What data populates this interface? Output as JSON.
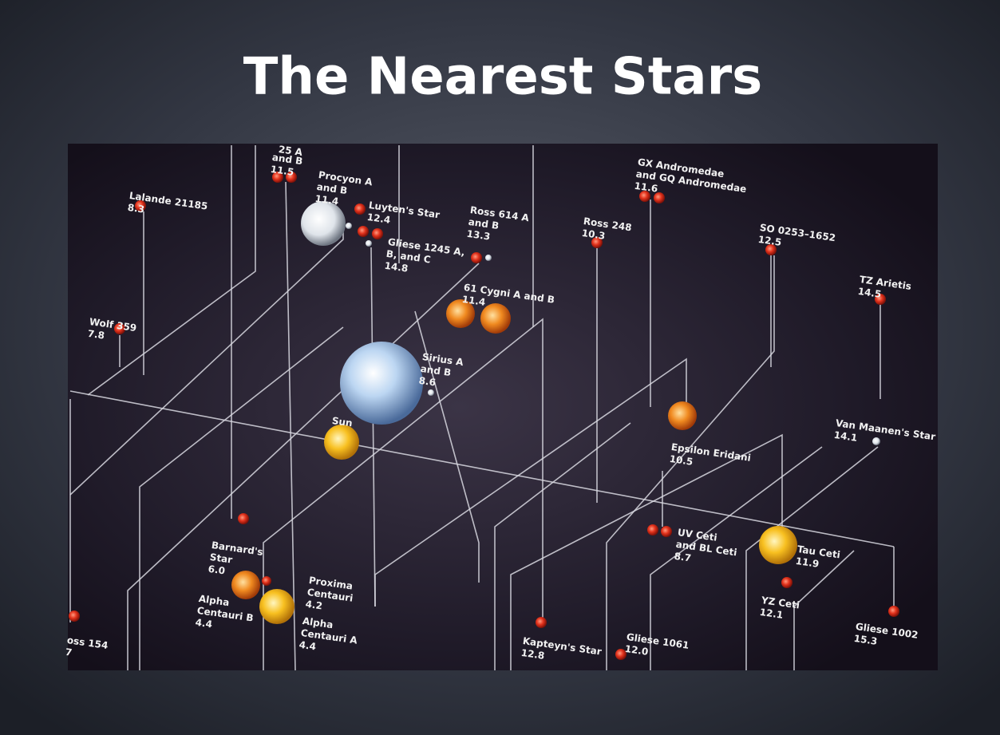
{
  "title": "The Nearest Stars",
  "stars": [
    {
      "lines": [
        "25 A"
      ],
      "distance": null
    },
    {
      "lines": [
        "and B"
      ],
      "distance": "11.5"
    },
    {
      "lines": [
        "Lalande 21185"
      ],
      "distance": "8.3"
    },
    {
      "lines": [
        "Procyon A",
        "and B"
      ],
      "distance": "11.4"
    },
    {
      "lines": [
        "Luyten's Star"
      ],
      "distance": "12.4"
    },
    {
      "lines": [
        "Gliese 1245 A,",
        "B, and C"
      ],
      "distance": "14.8"
    },
    {
      "lines": [
        "Ross 614 A",
        "and B"
      ],
      "distance": "13.3"
    },
    {
      "lines": [
        "Ross 248"
      ],
      "distance": "10.3"
    },
    {
      "lines": [
        "GX Andromedae",
        "and GQ Andromedae"
      ],
      "distance": "11.6"
    },
    {
      "lines": [
        "SO 0253–1652"
      ],
      "distance": "12.5"
    },
    {
      "lines": [
        "TZ Arietis"
      ],
      "distance": "14.5"
    },
    {
      "lines": [
        "Wolf 359"
      ],
      "distance": "7.8"
    },
    {
      "lines": [
        "61 Cygni A and B"
      ],
      "distance": "11.4"
    },
    {
      "lines": [
        "Sirius A",
        "and B"
      ],
      "distance": "8.6"
    },
    {
      "lines": [
        "Sun"
      ],
      "distance": null
    },
    {
      "lines": [
        "Epsilon Eridani"
      ],
      "distance": "10.5"
    },
    {
      "lines": [
        "Van Maanen's Star"
      ],
      "distance": "14.1"
    },
    {
      "lines": [
        "Barnard's",
        "Star"
      ],
      "distance": "6.0"
    },
    {
      "lines": [
        "UV Ceti",
        "and BL Ceti"
      ],
      "distance": "8.7"
    },
    {
      "lines": [
        "Tau Ceti"
      ],
      "distance": "11.9"
    },
    {
      "lines": [
        "YZ Ceti"
      ],
      "distance": "12.1"
    },
    {
      "lines": [
        "Proxima",
        "Centauri"
      ],
      "distance": "4.2"
    },
    {
      "lines": [
        "Alpha",
        "Centauri B"
      ],
      "distance": "4.4"
    },
    {
      "lines": [
        "Alpha",
        "Centauri A"
      ],
      "distance": "4.4"
    },
    {
      "lines": [
        "oss 154"
      ],
      "distance": "7"
    },
    {
      "lines": [
        "Kapteyn's Star"
      ],
      "distance": "12.8"
    },
    {
      "lines": [
        "Gliese 1061"
      ],
      "distance": "12.0"
    },
    {
      "lines": [
        "Gliese 1002"
      ],
      "distance": "15.3"
    }
  ]
}
